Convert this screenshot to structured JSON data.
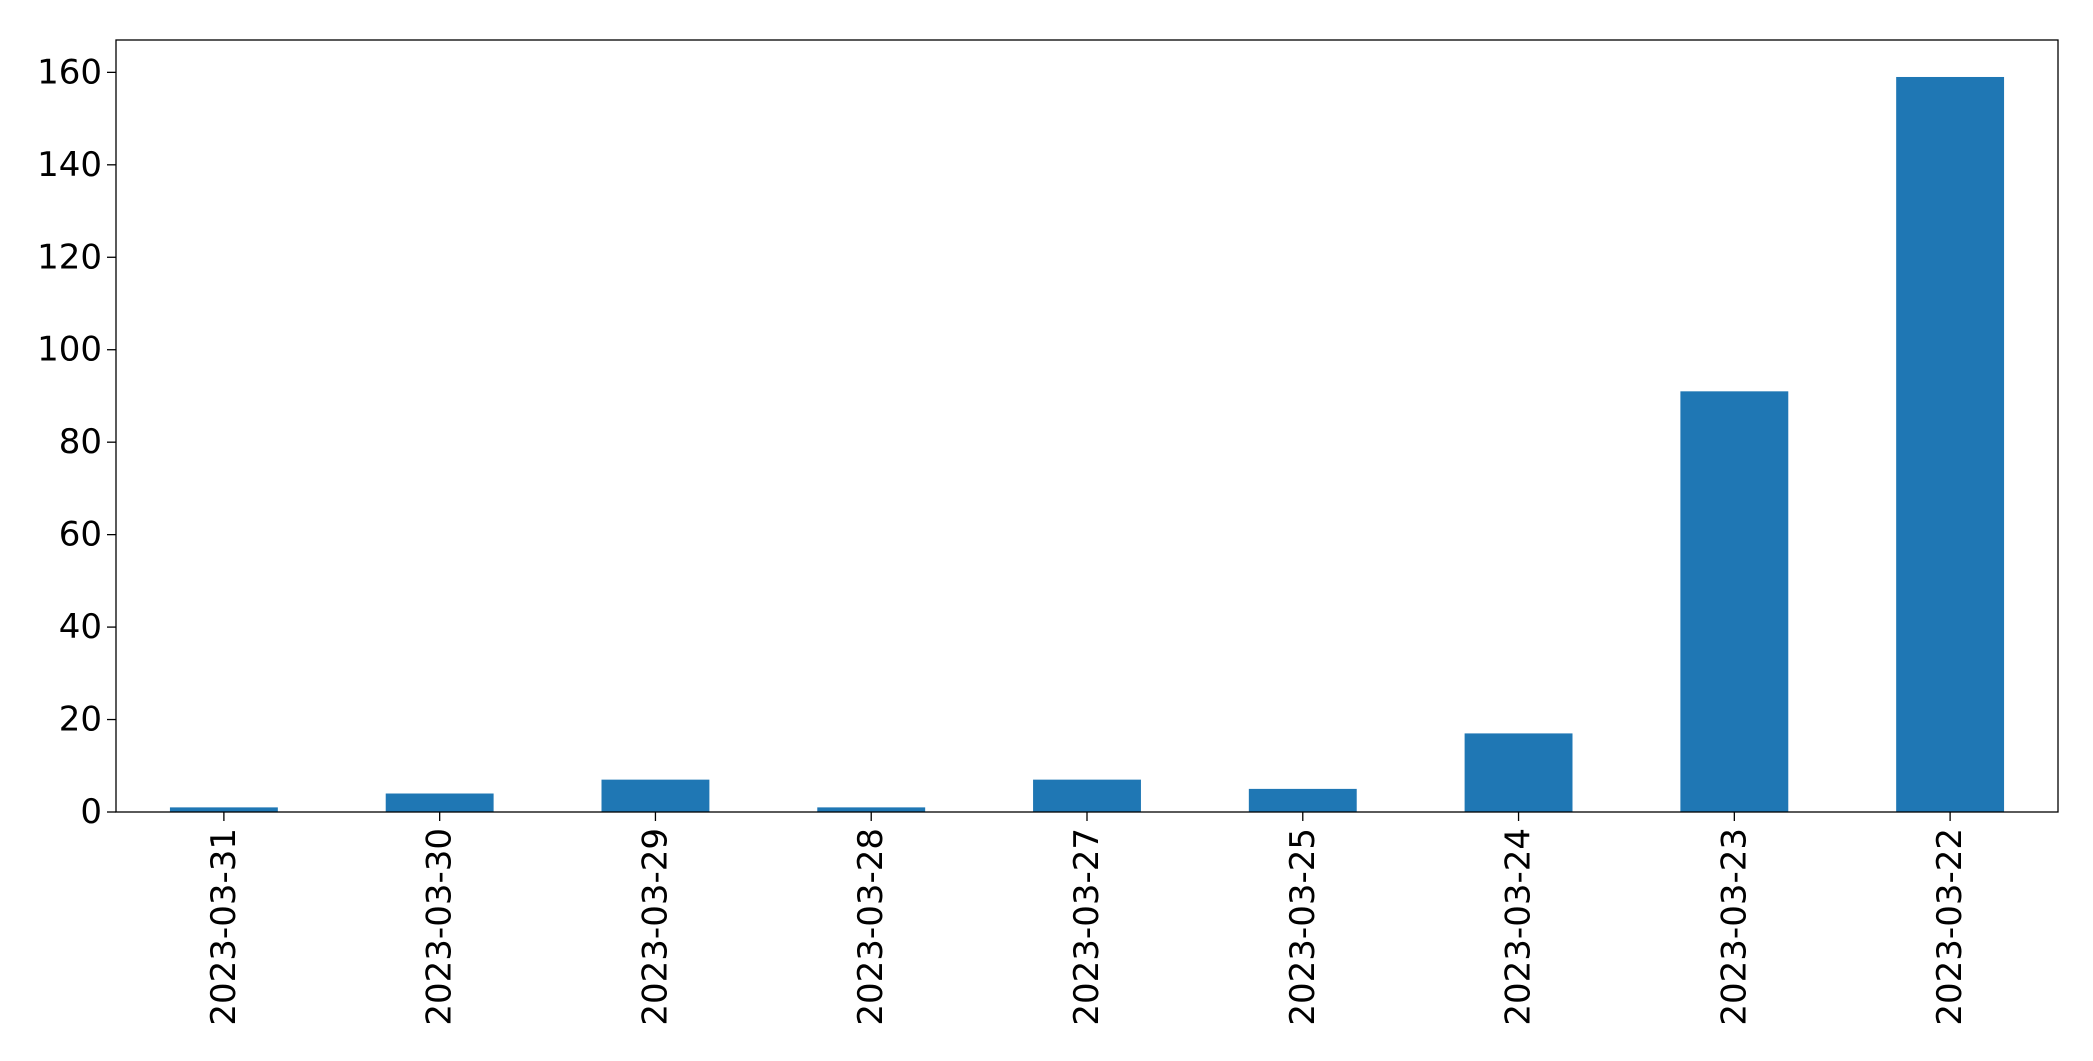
{
  "chart_data": {
    "type": "bar",
    "categories": [
      "2023-03-31",
      "2023-03-30",
      "2023-03-29",
      "2023-03-28",
      "2023-03-27",
      "2023-03-25",
      "2023-03-24",
      "2023-03-23",
      "2023-03-22"
    ],
    "values": [
      1,
      4,
      7,
      1,
      7,
      5,
      17,
      91,
      159
    ],
    "ylim": [
      0,
      167
    ],
    "yticks": [
      "0",
      "20",
      "40",
      "60",
      "80",
      "100",
      "120",
      "140",
      "160"
    ],
    "xtick_rotation": "vertical",
    "grid": false,
    "legend": "none",
    "title": "",
    "xlabel": "",
    "ylabel": "",
    "colors": {
      "bar": "#1f77b4",
      "axis": "#000000",
      "background": "#ffffff"
    }
  }
}
